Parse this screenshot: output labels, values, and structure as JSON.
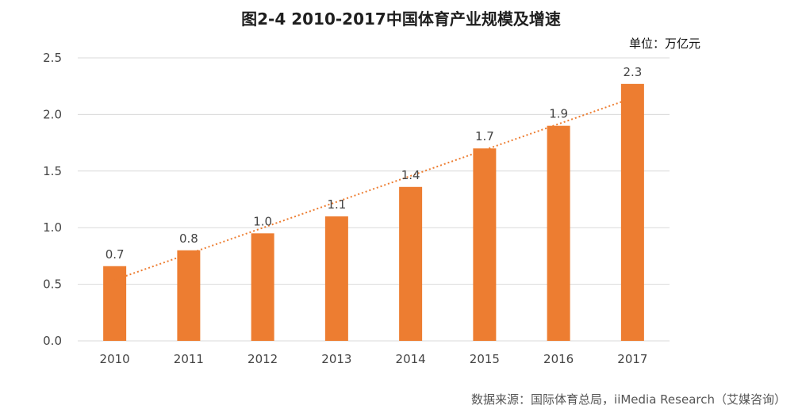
{
  "chart_data": {
    "type": "bar",
    "title": "图2-4 2010-2017中国体育产业规模及增速",
    "unit": "单位：万亿元",
    "source": "数据来源：国际体育总局，iiMedia Research（艾媒咨询）",
    "categories": [
      "2010",
      "2011",
      "2012",
      "2013",
      "2014",
      "2015",
      "2016",
      "2017"
    ],
    "values": [
      0.66,
      0.8,
      0.95,
      1.1,
      1.36,
      1.7,
      1.9,
      2.27
    ],
    "data_labels": [
      "0.7",
      "0.8",
      "1.0",
      "1.1",
      "1.4",
      "1.7",
      "1.9",
      "2.3"
    ],
    "y_ticks": [
      "0.0",
      "0.5",
      "1.0",
      "1.5",
      "2.0",
      "2.5"
    ],
    "ylim": [
      0,
      2.5
    ],
    "trendline": "linear",
    "grid": true,
    "colors": {
      "bar": "#ED7D31",
      "trend": "#ED7D31",
      "grid": "#D9D9D9"
    }
  }
}
